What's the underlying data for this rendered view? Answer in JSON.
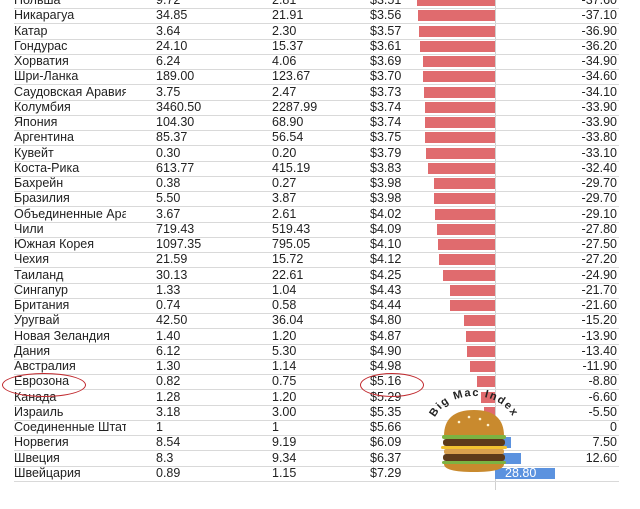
{
  "chart_data": {
    "type": "table",
    "bar_colors": {
      "negative": "#e06b6e",
      "positive": "#5b92df"
    },
    "rows": [
      {
        "country": "Польша",
        "local_price": "9.72",
        "exchange_rate": "2.81",
        "usd_price": "$3.51",
        "diff": "-37.60"
      },
      {
        "country": "Никарагуа",
        "local_price": "34.85",
        "exchange_rate": "21.91",
        "usd_price": "$3.56",
        "diff": "-37.10"
      },
      {
        "country": "Катар",
        "local_price": "3.64",
        "exchange_rate": "2.30",
        "usd_price": "$3.57",
        "diff": "-36.90"
      },
      {
        "country": "Гондурас",
        "local_price": "24.10",
        "exchange_rate": "15.37",
        "usd_price": "$3.61",
        "diff": "-36.20"
      },
      {
        "country": "Хорватия",
        "local_price": "6.24",
        "exchange_rate": "4.06",
        "usd_price": "$3.69",
        "diff": "-34.90"
      },
      {
        "country": "Шри-Ланка",
        "local_price": "189.00",
        "exchange_rate": "123.67",
        "usd_price": "$3.70",
        "diff": "-34.60"
      },
      {
        "country": "Саудовская Аравия",
        "local_price": "3.75",
        "exchange_rate": "2.47",
        "usd_price": "$3.73",
        "diff": "-34.10"
      },
      {
        "country": "Колумбия",
        "local_price": "3460.50",
        "exchange_rate": "2287.99",
        "usd_price": "$3.74",
        "diff": "-33.90"
      },
      {
        "country": "Япония",
        "local_price": "104.30",
        "exchange_rate": "68.90",
        "usd_price": "$3.74",
        "diff": "-33.90"
      },
      {
        "country": "Аргентина",
        "local_price": "85.37",
        "exchange_rate": "56.54",
        "usd_price": "$3.75",
        "diff": "-33.80"
      },
      {
        "country": "Кувейт",
        "local_price": "0.30",
        "exchange_rate": "0.20",
        "usd_price": "$3.79",
        "diff": "-33.10"
      },
      {
        "country": "Коста-Рика",
        "local_price": "613.77",
        "exchange_rate": "415.19",
        "usd_price": "$3.83",
        "diff": "-32.40"
      },
      {
        "country": "Бахрейн",
        "local_price": "0.38",
        "exchange_rate": "0.27",
        "usd_price": "$3.98",
        "diff": "-29.70"
      },
      {
        "country": "Бразилия",
        "local_price": "5.50",
        "exchange_rate": "3.87",
        "usd_price": "$3.98",
        "diff": "-29.70"
      },
      {
        "country": "Объединенные Арабские Эмираты",
        "local_price": "3.67",
        "exchange_rate": "2.61",
        "usd_price": "$4.02",
        "diff": "-29.10"
      },
      {
        "country": "Чили",
        "local_price": "719.43",
        "exchange_rate": "519.43",
        "usd_price": "$4.09",
        "diff": "-27.80"
      },
      {
        "country": "Южная Корея",
        "local_price": "1097.35",
        "exchange_rate": "795.05",
        "usd_price": "$4.10",
        "diff": "-27.50"
      },
      {
        "country": "Чехия",
        "local_price": "21.59",
        "exchange_rate": "15.72",
        "usd_price": "$4.12",
        "diff": "-27.20"
      },
      {
        "country": "Таиланд",
        "local_price": "30.13",
        "exchange_rate": "22.61",
        "usd_price": "$4.25",
        "diff": "-24.90"
      },
      {
        "country": "Сингапур",
        "local_price": "1.33",
        "exchange_rate": "1.04",
        "usd_price": "$4.43",
        "diff": "-21.70"
      },
      {
        "country": "Британия",
        "local_price": "0.74",
        "exchange_rate": "0.58",
        "usd_price": "$4.44",
        "diff": "-21.60"
      },
      {
        "country": "Уругвай",
        "local_price": "42.50",
        "exchange_rate": "36.04",
        "usd_price": "$4.80",
        "diff": "-15.20"
      },
      {
        "country": "Новая Зеландия",
        "local_price": "1.40",
        "exchange_rate": "1.20",
        "usd_price": "$4.87",
        "diff": "-13.90"
      },
      {
        "country": "Дания",
        "local_price": "6.12",
        "exchange_rate": "5.30",
        "usd_price": "$4.90",
        "diff": "-13.40"
      },
      {
        "country": "Австралия",
        "local_price": "1.30",
        "exchange_rate": "1.14",
        "usd_price": "$4.98",
        "diff": "-11.90"
      },
      {
        "country": "Еврозона",
        "local_price": "0.82",
        "exchange_rate": "0.75",
        "usd_price": "$5.16",
        "diff": "-8.80"
      },
      {
        "country": "Канада",
        "local_price": "1.28",
        "exchange_rate": "1.20",
        "usd_price": "$5.29",
        "diff": "-6.60"
      },
      {
        "country": "Израиль",
        "local_price": "3.18",
        "exchange_rate": "3.00",
        "usd_price": "$5.35",
        "diff": "-5.50"
      },
      {
        "country": "Соединенные Штаты",
        "local_price": "1",
        "exchange_rate": "1",
        "usd_price": "$5.66",
        "diff": "0"
      },
      {
        "country": "Норвегия",
        "local_price": "8.54",
        "exchange_rate": "9.19",
        "usd_price": "$6.09",
        "diff": "7.50"
      },
      {
        "country": "Швеция",
        "local_price": "8.3",
        "exchange_rate": "9.34",
        "usd_price": "$6.37",
        "diff": "12.60"
      },
      {
        "country": "Швейцария",
        "local_price": "0.89",
        "exchange_rate": "1.15",
        "usd_price": "$7.29",
        "diff": "28.80"
      }
    ],
    "highlighted": [
      "Еврозона"
    ]
  },
  "logo": {
    "text": "Big Mac Index"
  }
}
